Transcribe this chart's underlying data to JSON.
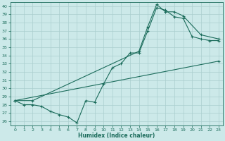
{
  "xlabel": "Humidex (Indice chaleur)",
  "xlim": [
    -0.5,
    23.5
  ],
  "ylim": [
    25.5,
    40.5
  ],
  "xticks": [
    0,
    1,
    2,
    3,
    4,
    5,
    6,
    7,
    8,
    9,
    10,
    11,
    12,
    13,
    14,
    15,
    16,
    17,
    18,
    19,
    20,
    21,
    22,
    23
  ],
  "yticks": [
    26,
    27,
    28,
    29,
    30,
    31,
    32,
    33,
    34,
    35,
    36,
    37,
    38,
    39,
    40
  ],
  "background_color": "#cce9e9",
  "grid_color": "#aacece",
  "line_color": "#1a6b5a",
  "line1_x": [
    0,
    1,
    2,
    3,
    4,
    5,
    6,
    7,
    8,
    9,
    10,
    11,
    12,
    13,
    14,
    15,
    16,
    17,
    18,
    19,
    20,
    21,
    22,
    23
  ],
  "line1_y": [
    28.5,
    28.0,
    28.0,
    27.8,
    27.2,
    26.8,
    26.5,
    25.8,
    28.5,
    28.3,
    30.5,
    32.5,
    33.0,
    34.3,
    34.3,
    37.0,
    39.8,
    39.5,
    38.7,
    38.5,
    36.3,
    36.0,
    35.8,
    35.8
  ],
  "line2_x": [
    0,
    2,
    14,
    15,
    16,
    17,
    18,
    19,
    21,
    23
  ],
  "line2_y": [
    28.5,
    28.5,
    34.5,
    37.5,
    40.2,
    39.3,
    39.3,
    38.8,
    36.5,
    36.0
  ],
  "line3_x": [
    0,
    23
  ],
  "line3_y": [
    28.5,
    33.3
  ]
}
